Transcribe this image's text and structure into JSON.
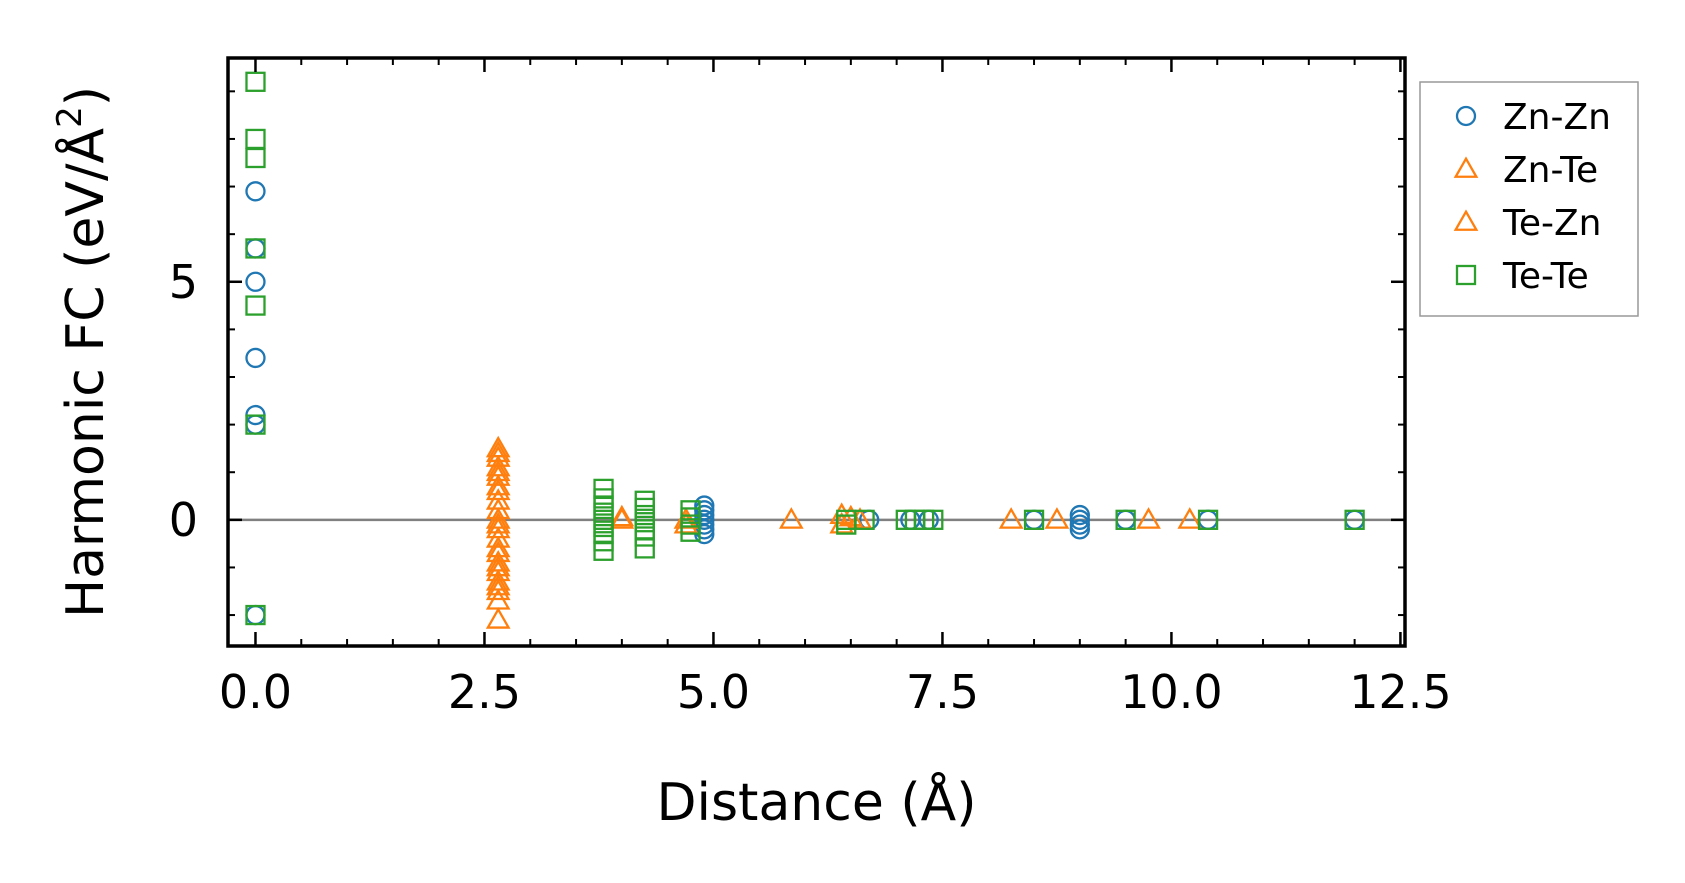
{
  "chart_data": {
    "type": "scatter",
    "xlabel": "Distance (Å)",
    "ylabel": "Harmonic FC (eV/Å",
    "ylabel_sup": "2",
    "ylabel_close": ")",
    "xlim": [
      -0.3,
      12.55
    ],
    "ylim": [
      -2.65,
      9.7
    ],
    "xticks": [
      0.0,
      2.5,
      5.0,
      7.5,
      10.0,
      12.5
    ],
    "xtick_labels": [
      "0.0",
      "2.5",
      "5.0",
      "7.5",
      "10.0",
      "12.5"
    ],
    "yticks": [
      0,
      5
    ],
    "ytick_labels": [
      "0",
      "5"
    ],
    "grid": false,
    "zero_line": true,
    "legend_position": "right-outside-top",
    "colors": {
      "zn_zn": "#1f77b4",
      "zn_te": "#ff7f0e",
      "te_zn": "#ff7f0e",
      "te_te": "#2ca02c",
      "zero_line": "#808080"
    },
    "series": [
      {
        "name": "Zn-Zn",
        "marker": "circle",
        "color": "#1f77b4",
        "points": [
          [
            0.0,
            6.9
          ],
          [
            0.0,
            5.7
          ],
          [
            0.0,
            5.0
          ],
          [
            0.0,
            3.4
          ],
          [
            0.0,
            2.2
          ],
          [
            0.0,
            2.0
          ],
          [
            0.0,
            -2.0
          ],
          [
            4.9,
            0.3
          ],
          [
            4.9,
            0.2
          ],
          [
            4.9,
            0.1
          ],
          [
            4.9,
            0.0
          ],
          [
            4.9,
            -0.1
          ],
          [
            4.9,
            -0.2
          ],
          [
            4.9,
            -0.3
          ],
          [
            6.7,
            0.0
          ],
          [
            7.15,
            0.0
          ],
          [
            7.35,
            0.0
          ],
          [
            8.5,
            0.0
          ],
          [
            9.0,
            0.1
          ],
          [
            9.0,
            0.0
          ],
          [
            9.0,
            -0.1
          ],
          [
            9.0,
            -0.2
          ],
          [
            9.5,
            0.0
          ],
          [
            10.4,
            0.0
          ],
          [
            12.0,
            0.0
          ]
        ]
      },
      {
        "name": "Zn-Te",
        "marker": "triangle",
        "color": "#ff7f0e",
        "points": [
          [
            2.65,
            1.5
          ],
          [
            2.65,
            1.3
          ],
          [
            2.65,
            1.1
          ],
          [
            2.65,
            0.9
          ],
          [
            2.65,
            0.7
          ],
          [
            2.65,
            0.4
          ],
          [
            2.65,
            0.2
          ],
          [
            2.65,
            -0.1
          ],
          [
            2.65,
            -0.4
          ],
          [
            2.65,
            -0.7
          ],
          [
            2.65,
            -0.9
          ],
          [
            2.65,
            -1.1
          ],
          [
            2.65,
            -1.3
          ],
          [
            2.65,
            -1.5
          ],
          [
            2.65,
            -1.7
          ],
          [
            2.65,
            -2.1
          ],
          [
            4.0,
            0.0
          ],
          [
            4.7,
            0.0
          ],
          [
            4.7,
            -0.1
          ],
          [
            5.85,
            0.0
          ],
          [
            6.4,
            0.1
          ],
          [
            6.4,
            -0.1
          ],
          [
            6.6,
            0.0
          ],
          [
            8.25,
            0.0
          ],
          [
            8.75,
            0.0
          ],
          [
            9.75,
            0.0
          ],
          [
            10.2,
            0.0
          ]
        ]
      },
      {
        "name": "Te-Zn",
        "marker": "triangle",
        "color": "#ff7f0e",
        "points": [
          [
            2.65,
            1.4
          ],
          [
            2.65,
            1.0
          ],
          [
            2.65,
            0.6
          ],
          [
            2.65,
            0.0
          ],
          [
            2.65,
            -0.2
          ],
          [
            2.65,
            -0.6
          ],
          [
            2.65,
            -1.0
          ],
          [
            2.65,
            -1.4
          ],
          [
            4.0,
            0.05
          ],
          [
            6.5,
            0.05
          ]
        ]
      },
      {
        "name": "Te-Te",
        "marker": "square",
        "color": "#2ca02c",
        "points": [
          [
            0.0,
            9.2
          ],
          [
            0.0,
            8.0
          ],
          [
            0.0,
            7.6
          ],
          [
            0.0,
            5.7
          ],
          [
            0.0,
            4.5
          ],
          [
            0.0,
            2.0
          ],
          [
            0.0,
            -2.0
          ],
          [
            3.8,
            0.65
          ],
          [
            3.8,
            0.45
          ],
          [
            3.8,
            0.3
          ],
          [
            3.8,
            0.15
          ],
          [
            3.8,
            0.0
          ],
          [
            3.8,
            -0.15
          ],
          [
            3.8,
            -0.3
          ],
          [
            3.8,
            -0.45
          ],
          [
            3.8,
            -0.65
          ],
          [
            4.25,
            0.4
          ],
          [
            4.25,
            0.25
          ],
          [
            4.25,
            0.1
          ],
          [
            4.25,
            -0.05
          ],
          [
            4.25,
            -0.2
          ],
          [
            4.25,
            -0.35
          ],
          [
            4.25,
            -0.6
          ],
          [
            4.75,
            0.2
          ],
          [
            4.75,
            0.05
          ],
          [
            4.75,
            -0.1
          ],
          [
            4.75,
            -0.25
          ],
          [
            6.45,
            0.0
          ],
          [
            6.45,
            -0.1
          ],
          [
            6.65,
            0.0
          ],
          [
            7.1,
            0.0
          ],
          [
            7.2,
            0.0
          ],
          [
            7.3,
            0.0
          ],
          [
            7.4,
            0.0
          ],
          [
            8.5,
            0.0
          ],
          [
            9.5,
            0.0
          ],
          [
            10.4,
            0.0
          ],
          [
            12.0,
            0.0
          ]
        ]
      }
    ]
  }
}
